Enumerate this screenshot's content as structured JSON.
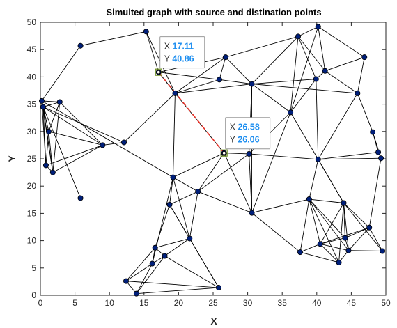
{
  "chart_data": {
    "type": "scatter",
    "title": "Simulted graph with source and distination points",
    "xlabel": "X",
    "ylabel": "Y",
    "xlim": [
      0,
      50
    ],
    "ylim": [
      0,
      50
    ],
    "xticks": [
      "0",
      "5",
      "10",
      "15",
      "20",
      "25",
      "30",
      "35",
      "40",
      "45",
      "50"
    ],
    "yticks": [
      "0",
      "5",
      "10",
      "15",
      "20",
      "25",
      "30",
      "35",
      "40",
      "45",
      "50"
    ],
    "grid": false,
    "nodes": [
      [
        0.2,
        35.6
      ],
      [
        0.4,
        34.5
      ],
      [
        0.8,
        23.8
      ],
      [
        1.2,
        30.0
      ],
      [
        2.8,
        35.4
      ],
      [
        1.8,
        22.5
      ],
      [
        5.8,
        45.7
      ],
      [
        5.8,
        17.8
      ],
      [
        9.0,
        27.5
      ],
      [
        12.1,
        28.0
      ],
      [
        15.3,
        48.3
      ],
      [
        17.11,
        40.86
      ],
      [
        19.5,
        37.0
      ],
      [
        19.2,
        21.6
      ],
      [
        12.4,
        2.6
      ],
      [
        13.9,
        0.3
      ],
      [
        16.2,
        5.8
      ],
      [
        16.6,
        8.7
      ],
      [
        18.0,
        7.2
      ],
      [
        18.7,
        16.6
      ],
      [
        21.6,
        10.4
      ],
      [
        22.8,
        19.0
      ],
      [
        25.8,
        1.4
      ],
      [
        26.58,
        26.06
      ],
      [
        30.2,
        25.9
      ],
      [
        30.6,
        15.1
      ],
      [
        26.8,
        43.6
      ],
      [
        25.9,
        39.5
      ],
      [
        30.6,
        38.7
      ],
      [
        36.2,
        33.5
      ],
      [
        37.3,
        47.4
      ],
      [
        40.2,
        49.2
      ],
      [
        39.9,
        39.6
      ],
      [
        41.2,
        41.1
      ],
      [
        46.9,
        43.6
      ],
      [
        45.9,
        37.0
      ],
      [
        48.1,
        29.9
      ],
      [
        48.9,
        26.2
      ],
      [
        49.3,
        25.1
      ],
      [
        40.2,
        24.9
      ],
      [
        38.9,
        17.6
      ],
      [
        43.9,
        16.9
      ],
      [
        47.6,
        12.4
      ],
      [
        44.1,
        10.5
      ],
      [
        40.5,
        9.4
      ],
      [
        44.6,
        8.2
      ],
      [
        37.6,
        7.9
      ],
      [
        43.2,
        6.0
      ],
      [
        49.5,
        8.1
      ]
    ],
    "edges": [
      [
        0,
        1
      ],
      [
        0,
        4
      ],
      [
        0,
        2
      ],
      [
        0,
        5
      ],
      [
        0,
        3
      ],
      [
        1,
        2
      ],
      [
        1,
        3
      ],
      [
        1,
        5
      ],
      [
        1,
        4
      ],
      [
        1,
        8
      ],
      [
        1,
        7
      ],
      [
        2,
        3
      ],
      [
        2,
        5
      ],
      [
        3,
        4
      ],
      [
        3,
        5
      ],
      [
        3,
        8
      ],
      [
        4,
        5
      ],
      [
        4,
        8
      ],
      [
        5,
        8
      ],
      [
        2,
        8
      ],
      [
        1,
        9
      ],
      [
        8,
        9
      ],
      [
        0,
        13
      ],
      [
        9,
        12
      ],
      [
        6,
        0
      ],
      [
        6,
        10
      ],
      [
        10,
        11
      ],
      [
        10,
        12
      ],
      [
        11,
        12
      ],
      [
        11,
        26
      ],
      [
        11,
        27
      ],
      [
        12,
        26
      ],
      [
        12,
        27
      ],
      [
        12,
        28
      ],
      [
        12,
        13
      ],
      [
        12,
        23
      ],
      [
        13,
        19
      ],
      [
        13,
        21
      ],
      [
        13,
        16
      ],
      [
        13,
        20
      ],
      [
        13,
        23
      ],
      [
        19,
        17
      ],
      [
        19,
        20
      ],
      [
        19,
        22
      ],
      [
        19,
        21
      ],
      [
        17,
        18
      ],
      [
        17,
        16
      ],
      [
        17,
        20
      ],
      [
        17,
        14
      ],
      [
        16,
        18
      ],
      [
        16,
        14
      ],
      [
        16,
        15
      ],
      [
        18,
        20
      ],
      [
        18,
        22
      ],
      [
        18,
        15
      ],
      [
        14,
        15
      ],
      [
        14,
        22
      ],
      [
        15,
        22
      ],
      [
        20,
        21
      ],
      [
        20,
        22
      ],
      [
        21,
        23
      ],
      [
        21,
        24
      ],
      [
        21,
        25
      ],
      [
        23,
        24
      ],
      [
        23,
        25
      ],
      [
        24,
        25
      ],
      [
        24,
        28
      ],
      [
        24,
        29
      ],
      [
        24,
        39
      ],
      [
        25,
        40
      ],
      [
        25,
        46
      ],
      [
        25,
        28
      ],
      [
        26,
        27
      ],
      [
        26,
        28
      ],
      [
        26,
        30
      ],
      [
        27,
        28
      ],
      [
        28,
        29
      ],
      [
        28,
        30
      ],
      [
        28,
        32
      ],
      [
        28,
        35
      ],
      [
        29,
        30
      ],
      [
        29,
        32
      ],
      [
        29,
        39
      ],
      [
        29,
        31
      ],
      [
        30,
        31
      ],
      [
        30,
        33
      ],
      [
        30,
        32
      ],
      [
        31,
        33
      ],
      [
        31,
        34
      ],
      [
        32,
        33
      ],
      [
        32,
        39
      ],
      [
        33,
        34
      ],
      [
        33,
        35
      ],
      [
        34,
        35
      ],
      [
        35,
        36
      ],
      [
        35,
        39
      ],
      [
        36,
        37
      ],
      [
        36,
        38
      ],
      [
        37,
        38
      ],
      [
        37,
        39
      ],
      [
        39,
        38
      ],
      [
        39,
        40
      ],
      [
        39,
        41
      ],
      [
        40,
        41
      ],
      [
        40,
        44
      ],
      [
        40,
        43
      ],
      [
        40,
        45
      ],
      [
        40,
        47
      ],
      [
        40,
        46
      ],
      [
        41,
        42
      ],
      [
        41,
        43
      ],
      [
        41,
        44
      ],
      [
        41,
        45
      ],
      [
        41,
        47
      ],
      [
        41,
        48
      ],
      [
        42,
        43
      ],
      [
        42,
        44
      ],
      [
        42,
        45
      ],
      [
        42,
        48
      ],
      [
        43,
        44
      ],
      [
        43,
        45
      ],
      [
        44,
        45
      ],
      [
        44,
        46
      ],
      [
        44,
        47
      ],
      [
        45,
        47
      ],
      [
        45,
        48
      ],
      [
        46,
        47
      ],
      [
        38,
        42
      ],
      [
        39,
        41
      ],
      [
        29,
        25
      ],
      [
        11,
        12
      ]
    ],
    "path": [
      [
        17.11,
        40.86
      ],
      [
        26.58,
        26.06
      ]
    ],
    "datatips": [
      {
        "x_label": "X",
        "x_value": "17.11",
        "y_label": "Y",
        "y_value": "40.86"
      },
      {
        "x_label": "X",
        "x_value": "26.58",
        "y_label": "Y",
        "y_value": "26.06"
      }
    ],
    "colors": {
      "node_fill": "#001f7a",
      "edge": "#000000",
      "path": "#e8332a",
      "value_text": "#1f8ff0",
      "selected_node": "#6b8e23"
    }
  }
}
